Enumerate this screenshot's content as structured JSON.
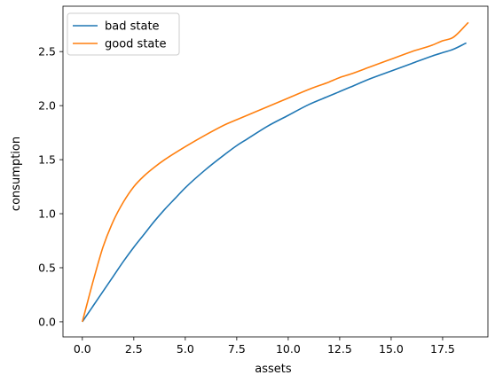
{
  "chart_data": {
    "type": "line",
    "title": "",
    "xlabel": "assets",
    "ylabel": "consumption",
    "xlim": [
      -0.94,
      19.7
    ],
    "ylim": [
      -0.14,
      2.92
    ],
    "xticks": [
      0.0,
      2.5,
      5.0,
      7.5,
      10.0,
      12.5,
      15.0,
      17.5
    ],
    "xtick_labels": [
      "0.0",
      "2.5",
      "5.0",
      "7.5",
      "10.0",
      "12.5",
      "15.0",
      "17.5"
    ],
    "yticks": [
      0.0,
      0.5,
      1.0,
      1.5,
      2.0,
      2.5
    ],
    "ytick_labels": [
      "0.0",
      "0.5",
      "1.0",
      "1.5",
      "2.0",
      "2.5"
    ],
    "grid": false,
    "legend_position": "upper-left",
    "series": [
      {
        "name": "bad state",
        "color": "#1f77b4",
        "x": [
          0,
          0.5,
          1,
          1.5,
          2,
          2.5,
          3,
          3.5,
          4,
          4.5,
          5,
          6,
          7,
          7.5,
          8,
          9,
          10,
          11,
          12,
          12.5,
          13,
          14,
          15,
          16,
          17,
          17.5,
          18,
          18.65
        ],
        "y": [
          0.0,
          0.14,
          0.28,
          0.42,
          0.56,
          0.69,
          0.81,
          0.93,
          1.04,
          1.14,
          1.24,
          1.41,
          1.56,
          1.63,
          1.69,
          1.81,
          1.91,
          2.01,
          2.09,
          2.13,
          2.17,
          2.25,
          2.32,
          2.39,
          2.46,
          2.49,
          2.52,
          2.58
        ]
      },
      {
        "name": "good state",
        "color": "#ff7f0e",
        "x": [
          0,
          0.25,
          0.5,
          0.75,
          1,
          1.5,
          2,
          2.5,
          3,
          3.5,
          4,
          5,
          6,
          7,
          7.5,
          8,
          9,
          10,
          11,
          12,
          12.5,
          13,
          14,
          15,
          16,
          17,
          17.5,
          18,
          18.75
        ],
        "y": [
          0.0,
          0.18,
          0.36,
          0.53,
          0.69,
          0.93,
          1.11,
          1.25,
          1.35,
          1.43,
          1.5,
          1.62,
          1.73,
          1.83,
          1.87,
          1.91,
          1.99,
          2.07,
          2.15,
          2.22,
          2.26,
          2.29,
          2.36,
          2.43,
          2.5,
          2.56,
          2.6,
          2.63,
          2.77
        ]
      }
    ]
  }
}
